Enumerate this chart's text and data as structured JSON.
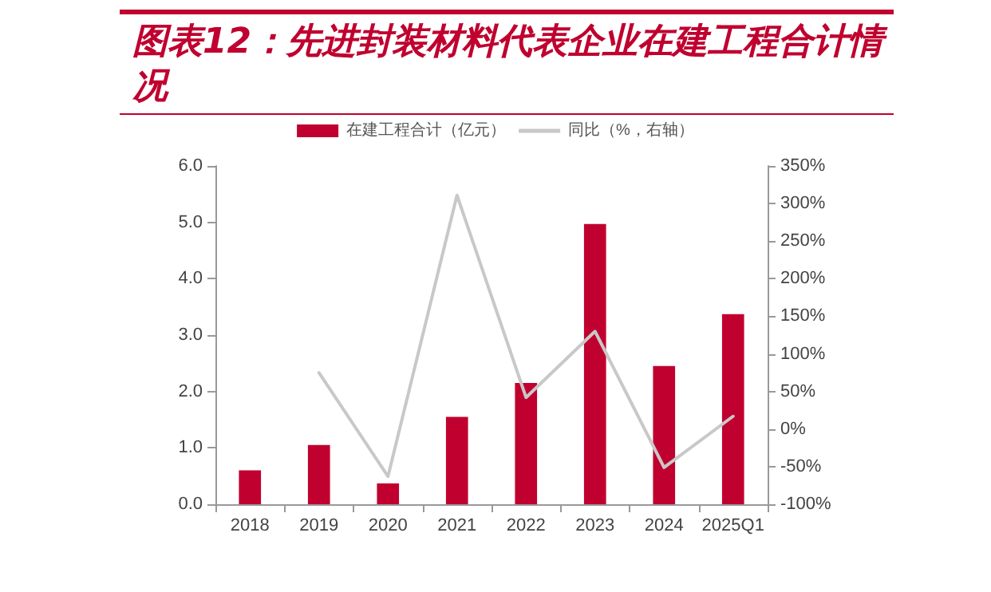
{
  "chart_data": {
    "type": "bar",
    "title": "图表12：先进封装材料代表企业在建工程合计情况",
    "categories": [
      "2018",
      "2019",
      "2020",
      "2021",
      "2022",
      "2023",
      "2024",
      "2025Q1"
    ],
    "series": [
      {
        "name": "在建工程合计（亿元）",
        "color": "#c0002f",
        "values": [
          0.6,
          1.05,
          0.37,
          1.55,
          2.15,
          4.97,
          2.45,
          3.37
        ]
      },
      {
        "name": "同比（%，右轴）",
        "type": "line",
        "axis": "y2",
        "color": "#c8c8c8",
        "values": [
          null,
          75,
          -63,
          311,
          42,
          130,
          -51,
          17
        ]
      }
    ],
    "ylim": [
      0,
      6
    ],
    "yticks": [
      {
        "value": 0,
        "label": "0.0"
      },
      {
        "value": 1,
        "label": "1.0"
      },
      {
        "value": 2,
        "label": "2.0"
      },
      {
        "value": 3,
        "label": "3.0"
      },
      {
        "value": 4,
        "label": "4.0"
      },
      {
        "value": 5,
        "label": "5.0"
      },
      {
        "value": 6,
        "label": "6.0"
      }
    ],
    "y2lim": [
      -100,
      350
    ],
    "y2ticks": [
      {
        "value": -100,
        "label": "-100%"
      },
      {
        "value": -50,
        "label": "-50%"
      },
      {
        "value": 0,
        "label": "0%"
      },
      {
        "value": 50,
        "label": "50%"
      },
      {
        "value": 100,
        "label": "100%"
      },
      {
        "value": 150,
        "label": "150%"
      },
      {
        "value": 200,
        "label": "200%"
      },
      {
        "value": 250,
        "label": "250%"
      },
      {
        "value": 300,
        "label": "300%"
      },
      {
        "value": 350,
        "label": "350%"
      }
    ],
    "grid": false,
    "legend": "top",
    "marker": "none",
    "line_style": "solid"
  }
}
